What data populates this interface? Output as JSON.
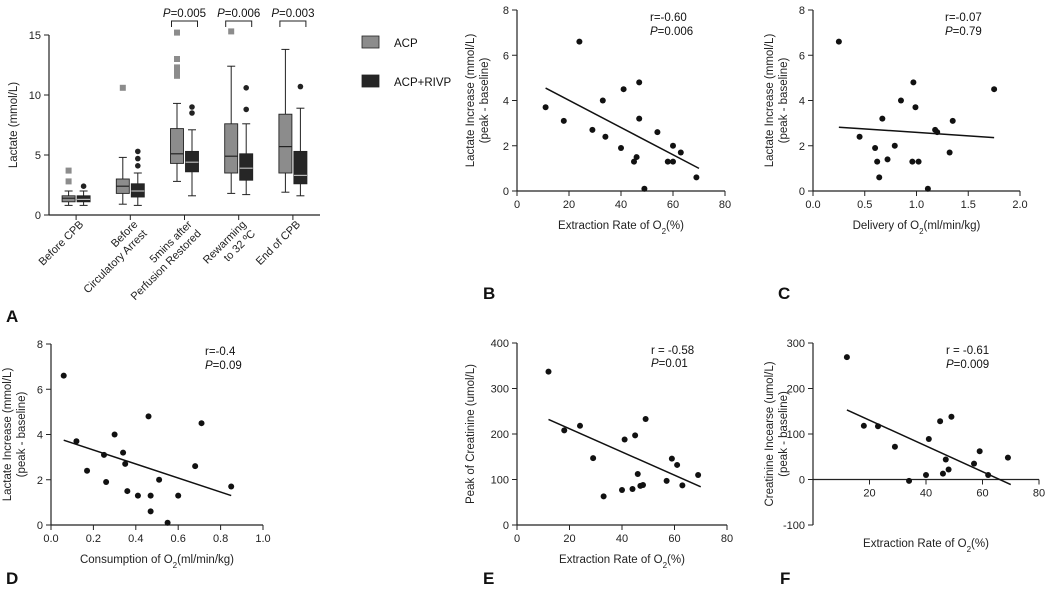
{
  "chart_data": [
    {
      "panel": "A",
      "type": "box",
      "ylabel": "Lactate (mmol/L)",
      "ylim": [
        0,
        15
      ],
      "yticks": [
        0,
        5,
        10,
        15
      ],
      "categories": [
        {
          "lines": [
            "Before CPB"
          ]
        },
        {
          "lines": [
            "Before",
            "Circulatory Arrest"
          ]
        },
        {
          "lines": [
            "5mins after",
            "Perfusion Restored"
          ]
        },
        {
          "lines": [
            "Rewarming",
            "to 32 ºC"
          ]
        },
        {
          "lines": [
            "End of CPB"
          ]
        }
      ],
      "series": [
        {
          "name": "ACP",
          "color": "#8c8c8c",
          "boxes": [
            {
              "whislo": 0.8,
              "q1": 1.1,
              "med": 1.4,
              "q3": 1.6,
              "whishi": 2.0,
              "fliers": [
                2.8,
                3.7
              ]
            },
            {
              "whislo": 0.9,
              "q1": 1.8,
              "med": 2.4,
              "q3": 3.0,
              "whishi": 4.8,
              "fliers": [
                10.6
              ]
            },
            {
              "whislo": 2.8,
              "q1": 4.3,
              "med": 5.1,
              "q3": 7.2,
              "whishi": 9.3,
              "fliers": [
                11.6,
                12.0,
                12.3,
                13.0,
                15.2
              ]
            },
            {
              "whislo": 1.8,
              "q1": 3.5,
              "med": 4.9,
              "q3": 7.6,
              "whishi": 12.4,
              "fliers": [
                15.3
              ]
            },
            {
              "whislo": 1.9,
              "q1": 3.5,
              "med": 5.7,
              "q3": 8.4,
              "whishi": 13.8,
              "fliers": []
            }
          ]
        },
        {
          "name": "ACP+RIVP",
          "color": "#262626",
          "boxes": [
            {
              "whislo": 0.8,
              "q1": 1.1,
              "med": 1.3,
              "q3": 1.6,
              "whishi": 2.0,
              "fliers": [
                2.4
              ]
            },
            {
              "whislo": 0.8,
              "q1": 1.5,
              "med": 2.0,
              "q3": 2.6,
              "whishi": 3.5,
              "fliers": [
                4.1,
                4.7,
                5.3
              ]
            },
            {
              "whislo": 1.6,
              "q1": 3.6,
              "med": 4.4,
              "q3": 5.3,
              "whishi": 7.1,
              "fliers": [
                8.5,
                9.0
              ]
            },
            {
              "whislo": 1.7,
              "q1": 2.9,
              "med": 3.9,
              "q3": 5.1,
              "whishi": 7.6,
              "fliers": [
                8.8,
                10.6
              ]
            },
            {
              "whislo": 1.6,
              "q1": 2.6,
              "med": 3.3,
              "q3": 5.3,
              "whishi": 8.9,
              "fliers": [
                10.7
              ]
            }
          ]
        }
      ],
      "annotations": [
        {
          "category": 2,
          "text": "P=0.005"
        },
        {
          "category": 3,
          "text": "P=0.006"
        },
        {
          "category": 4,
          "text": "P=0.003"
        }
      ]
    },
    {
      "panel": "B",
      "type": "scatter",
      "xlabel": "Extraction Rate of O₂(%)",
      "ylabel_lines": [
        "Lactate Increase (mmol/L)",
        "(peak - baseline)"
      ],
      "xlim": [
        0,
        80
      ],
      "ylim": [
        0,
        8
      ],
      "xticks": [
        0,
        20,
        40,
        60,
        80
      ],
      "yticks": [
        0,
        2,
        4,
        6,
        8
      ],
      "points": [
        [
          11,
          3.7
        ],
        [
          18,
          3.1
        ],
        [
          24,
          6.6
        ],
        [
          29,
          2.7
        ],
        [
          33,
          4.0
        ],
        [
          34,
          2.4
        ],
        [
          40,
          1.9
        ],
        [
          41,
          4.5
        ],
        [
          45,
          1.3
        ],
        [
          46,
          1.5
        ],
        [
          47,
          4.8
        ],
        [
          47,
          3.2
        ],
        [
          49,
          0.1
        ],
        [
          54,
          2.6
        ],
        [
          58,
          1.3
        ],
        [
          60,
          1.3
        ],
        [
          60,
          2.0
        ],
        [
          63,
          1.7
        ],
        [
          69,
          0.6
        ]
      ],
      "fit": [
        [
          11,
          4.55
        ],
        [
          70,
          1.0
        ]
      ],
      "annotation": [
        "r=-0.60",
        "P=0.006"
      ]
    },
    {
      "panel": "C",
      "type": "scatter",
      "xlabel": "Delivery of O₂(ml/min/kg)",
      "ylabel_lines": [
        "Lactate Increase (mmol/L)",
        "(peak - baseline)"
      ],
      "xlim": [
        0,
        2.0
      ],
      "ylim": [
        0,
        8
      ],
      "xticks": [
        0,
        0.5,
        1.0,
        1.5,
        2.0
      ],
      "xtick_labels": [
        "0.0",
        "0.5",
        "1.0",
        "1.5",
        "2.0"
      ],
      "yticks": [
        0,
        2,
        4,
        6,
        8
      ],
      "points": [
        [
          0.25,
          6.6
        ],
        [
          0.45,
          2.4
        ],
        [
          0.6,
          1.9
        ],
        [
          0.62,
          1.3
        ],
        [
          0.64,
          0.6
        ],
        [
          0.67,
          3.2
        ],
        [
          0.72,
          1.4
        ],
        [
          0.79,
          2.0
        ],
        [
          0.85,
          4.0
        ],
        [
          0.96,
          1.3
        ],
        [
          0.97,
          4.8
        ],
        [
          0.99,
          3.7
        ],
        [
          1.02,
          1.3
        ],
        [
          1.11,
          0.1
        ],
        [
          1.18,
          2.7
        ],
        [
          1.2,
          2.6
        ],
        [
          1.32,
          1.7
        ],
        [
          1.35,
          3.1
        ],
        [
          1.75,
          4.5
        ]
      ],
      "fit": [
        [
          0.25,
          2.82
        ],
        [
          1.75,
          2.36
        ]
      ],
      "annotation": [
        "r=-0.07",
        "P=0.79"
      ]
    },
    {
      "panel": "D",
      "type": "scatter",
      "xlabel": "Consumption of O₂(ml/min/kg)",
      "ylabel_lines": [
        "Lactate Increase (mmol/L)",
        "(peak - baseline)"
      ],
      "xlim": [
        0,
        1.0
      ],
      "ylim": [
        0,
        8
      ],
      "xticks": [
        0,
        0.2,
        0.4,
        0.6,
        0.8,
        1.0
      ],
      "xtick_labels": [
        "0.0",
        "0.2",
        "0.4",
        "0.6",
        "0.8",
        "1.0"
      ],
      "yticks": [
        0,
        2,
        4,
        6,
        8
      ],
      "points": [
        [
          0.06,
          6.6
        ],
        [
          0.12,
          3.7
        ],
        [
          0.17,
          2.4
        ],
        [
          0.25,
          3.1
        ],
        [
          0.26,
          1.9
        ],
        [
          0.3,
          4.0
        ],
        [
          0.34,
          3.2
        ],
        [
          0.35,
          2.7
        ],
        [
          0.36,
          1.5
        ],
        [
          0.41,
          1.3
        ],
        [
          0.46,
          4.8
        ],
        [
          0.47,
          0.6
        ],
        [
          0.47,
          1.3
        ],
        [
          0.51,
          2.0
        ],
        [
          0.55,
          0.1
        ],
        [
          0.6,
          1.3
        ],
        [
          0.68,
          2.6
        ],
        [
          0.71,
          4.5
        ],
        [
          0.85,
          1.7
        ]
      ],
      "fit": [
        [
          0.06,
          3.75
        ],
        [
          0.85,
          1.3
        ]
      ],
      "annotation": [
        "r=-0.4",
        "P=0.09"
      ]
    },
    {
      "panel": "E",
      "type": "scatter",
      "xlabel": "Extraction Rate of O₂(%)",
      "ylabel_lines": [
        "Peak of Creatinine (umol/L)"
      ],
      "xlim": [
        0,
        80
      ],
      "ylim": [
        0,
        400
      ],
      "xticks": [
        0,
        20,
        40,
        60,
        80
      ],
      "yticks": [
        0,
        100,
        200,
        300,
        400
      ],
      "points": [
        [
          12,
          337
        ],
        [
          18,
          208
        ],
        [
          24,
          218
        ],
        [
          29,
          147
        ],
        [
          33,
          63
        ],
        [
          40,
          77
        ],
        [
          41,
          188
        ],
        [
          44,
          79
        ],
        [
          45,
          197
        ],
        [
          46,
          112
        ],
        [
          47,
          86
        ],
        [
          48,
          88
        ],
        [
          49,
          233
        ],
        [
          57,
          97
        ],
        [
          59,
          146
        ],
        [
          61,
          132
        ],
        [
          63,
          87
        ],
        [
          69,
          110
        ]
      ],
      "fit": [
        [
          12,
          232
        ],
        [
          70,
          84
        ]
      ],
      "annotation": [
        "r = -0.58",
        "P=0.01"
      ]
    },
    {
      "panel": "F",
      "type": "scatter",
      "xlabel": "Extraction Rate of O₂(%)",
      "ylabel_lines": [
        "Creatinine Incearse (umol/L)",
        "(peak - baseline)"
      ],
      "xlim": [
        0,
        80
      ],
      "ylim": [
        -100,
        300
      ],
      "xticks": [
        20,
        40,
        60,
        80
      ],
      "yticks": [
        -100,
        0,
        100,
        200,
        300
      ],
      "points": [
        [
          12,
          269
        ],
        [
          18,
          118
        ],
        [
          23,
          117
        ],
        [
          29,
          72
        ],
        [
          34,
          -3
        ],
        [
          40,
          10
        ],
        [
          41,
          89
        ],
        [
          45,
          128
        ],
        [
          46,
          13
        ],
        [
          47,
          44
        ],
        [
          48,
          22
        ],
        [
          49,
          138
        ],
        [
          57,
          35
        ],
        [
          59,
          62
        ],
        [
          62,
          10
        ],
        [
          69,
          48
        ]
      ],
      "fit": [
        [
          12,
          153
        ],
        [
          70,
          -11
        ]
      ],
      "annotation": [
        "r = -0.61",
        "P=0.009"
      ]
    }
  ]
}
